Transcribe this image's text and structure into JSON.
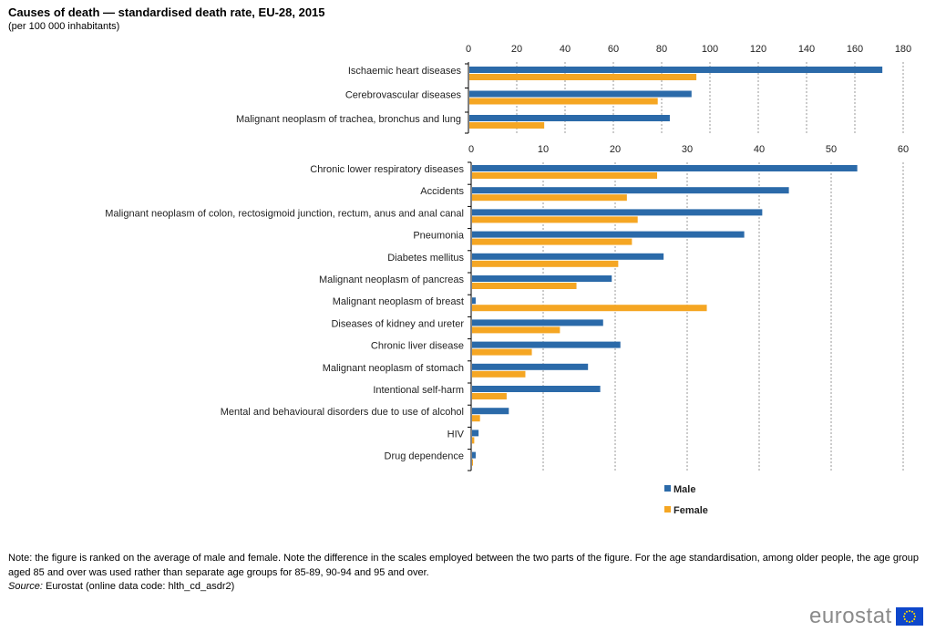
{
  "title": "Causes of death — standardised death rate, EU-28, 2015",
  "subtitle": "(per 100 000 inhabitants)",
  "note": "Note: the figure is ranked on the average of male and female. Note the difference in the scales employed between the two parts of the figure. For the age standardisation, among older people, the age group aged 85 and over was used rather than separate age groups for 85-89, 90-94 and 95 and over.",
  "source_label": "Source:",
  "source_text": " Eurostat (online data code: hlth_cd_asdr2)",
  "logo_text": "eurostat",
  "colors": {
    "male": "#2b6aa9",
    "female": "#f5a623"
  },
  "chart_data": [
    {
      "type": "bar",
      "orientation": "horizontal",
      "xlim": [
        0,
        180
      ],
      "ticks": [
        0,
        20,
        40,
        60,
        80,
        100,
        120,
        140,
        160,
        180
      ],
      "categories": [
        "Ischaemic heart diseases",
        "Cerebrovascular diseases",
        "Malignant neoplasm of trachea, bronchus and lung"
      ],
      "series": [
        {
          "name": "Male",
          "values": [
            171,
            92,
            83
          ]
        },
        {
          "name": "Female",
          "values": [
            94,
            78,
            31
          ]
        }
      ]
    },
    {
      "type": "bar",
      "orientation": "horizontal",
      "xlim": [
        0,
        60
      ],
      "ticks": [
        0,
        10,
        20,
        30,
        40,
        50,
        60
      ],
      "categories": [
        "Chronic lower respiratory diseases",
        "Accidents",
        "Malignant neoplasm of colon, rectosigmoid junction, rectum, anus and anal canal",
        "Pneumonia",
        "Diabetes mellitus",
        "Malignant neoplasm of pancreas",
        "Malignant neoplasm of breast",
        "Diseases of kidney and ureter",
        "Chronic liver disease",
        "Malignant neoplasm of stomach",
        "Intentional self-harm",
        "Mental and behavioural disorders due to use of alcohol",
        "HIV",
        "Drug dependence"
      ],
      "series": [
        {
          "name": "Male",
          "values": [
            53.5,
            44,
            40.3,
            37.8,
            26.6,
            19.4,
            0.5,
            18.2,
            20.6,
            16.1,
            17.8,
            5.1,
            0.9,
            0.5
          ]
        },
        {
          "name": "Female",
          "values": [
            25.7,
            21.5,
            23,
            22.2,
            20.3,
            14.5,
            32.6,
            12.2,
            8.3,
            7.4,
            4.8,
            1.1,
            0.3,
            0.1
          ]
        }
      ]
    }
  ]
}
